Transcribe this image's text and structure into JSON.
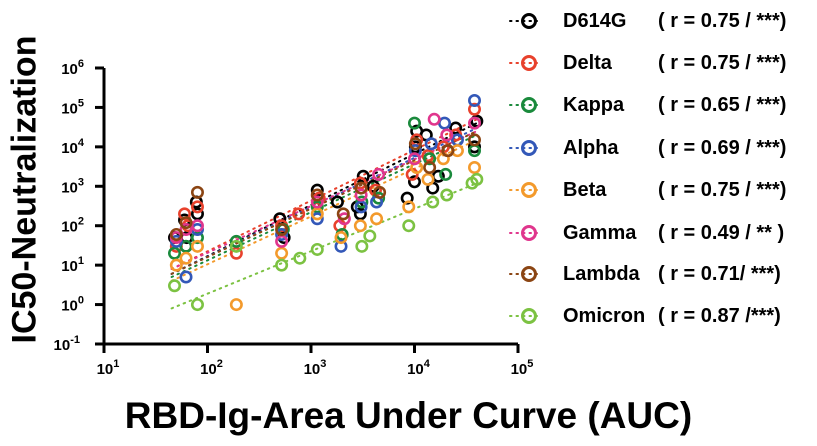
{
  "chart_data": {
    "type": "scatter",
    "title": "",
    "xlabel": "RBD-Ig-Area Under Curve (AUC)",
    "ylabel": "IC50-Neutralization",
    "x_scale": "log",
    "y_scale": "log",
    "xlim": [
      10,
      100000
    ],
    "ylim": [
      0.1,
      1000000
    ],
    "x_ticks": [
      {
        "base": "10",
        "exp": "1"
      },
      {
        "base": "10",
        "exp": "2"
      },
      {
        "base": "10",
        "exp": "3"
      },
      {
        "base": "10",
        "exp": "4"
      },
      {
        "base": "10",
        "exp": "5"
      }
    ],
    "y_ticks": [
      {
        "base": "10",
        "exp": "-1"
      },
      {
        "base": "10",
        "exp": "0"
      },
      {
        "base": "10",
        "exp": "1"
      },
      {
        "base": "10",
        "exp": "2"
      },
      {
        "base": "10",
        "exp": "3"
      },
      {
        "base": "10",
        "exp": "4"
      },
      {
        "base": "10",
        "exp": "5"
      },
      {
        "base": "10",
        "exp": "6"
      }
    ],
    "grid": false,
    "legend_position": "right",
    "series": [
      {
        "name": "D614G",
        "stat": "( r = 0.75 / ***)",
        "color": "#000000",
        "fit": [
          [
            45,
            6
          ],
          [
            40000,
            40000
          ]
        ],
        "points": [
          [
            48,
            50
          ],
          [
            60,
            140
          ],
          [
            62,
            30
          ],
          [
            63,
            50
          ],
          [
            78,
            400
          ],
          [
            80,
            200
          ],
          [
            500,
            150
          ],
          [
            550,
            50
          ],
          [
            1150,
            800
          ],
          [
            1800,
            400
          ],
          [
            2800,
            300
          ],
          [
            3000,
            200
          ],
          [
            3200,
            1800
          ],
          [
            4000,
            1000
          ],
          [
            8500,
            500
          ],
          [
            10000,
            1300
          ],
          [
            10200,
            10000
          ],
          [
            10500,
            25000
          ],
          [
            13000,
            20000
          ],
          [
            15000,
            900
          ],
          [
            17000,
            1800
          ],
          [
            21000,
            8000
          ],
          [
            25000,
            30000
          ],
          [
            38000,
            10000
          ],
          [
            40000,
            45000
          ]
        ]
      },
      {
        "name": "Delta",
        "stat": "( r = 0.75 / ***)",
        "color": "#e8412c",
        "fit": [
          [
            45,
            8
          ],
          [
            40000,
            50000
          ]
        ],
        "points": [
          [
            50,
            30
          ],
          [
            60,
            200
          ],
          [
            65,
            100
          ],
          [
            80,
            300
          ],
          [
            190,
            20
          ],
          [
            520,
            100
          ],
          [
            760,
            200
          ],
          [
            1200,
            500
          ],
          [
            1900,
            100
          ],
          [
            3000,
            1200
          ],
          [
            4200,
            800
          ],
          [
            9500,
            2000
          ],
          [
            10500,
            15000
          ],
          [
            13500,
            6000
          ],
          [
            19000,
            10000
          ],
          [
            25000,
            20000
          ],
          [
            38000,
            90000
          ]
        ]
      },
      {
        "name": "Kappa",
        "stat": "( r = 0.65 / ***)",
        "color": "#1a8a3c",
        "fit": [
          [
            45,
            5
          ],
          [
            40000,
            20000
          ]
        ],
        "points": [
          [
            48,
            20
          ],
          [
            62,
            30
          ],
          [
            80,
            50
          ],
          [
            190,
            40
          ],
          [
            540,
            80
          ],
          [
            1150,
            300
          ],
          [
            2000,
            60
          ],
          [
            3100,
            400
          ],
          [
            4500,
            500
          ],
          [
            10000,
            40000
          ],
          [
            14000,
            5000
          ],
          [
            20000,
            2000
          ],
          [
            38000,
            8000
          ]
        ]
      },
      {
        "name": "Alpha",
        "stat": "( r = 0.69 / ***)",
        "color": "#3358b8",
        "fit": [
          [
            45,
            6
          ],
          [
            40000,
            30000
          ]
        ],
        "points": [
          [
            50,
            40
          ],
          [
            62,
            5
          ],
          [
            80,
            80
          ],
          [
            520,
            60
          ],
          [
            1150,
            150
          ],
          [
            1950,
            30
          ],
          [
            3050,
            300
          ],
          [
            4300,
            400
          ],
          [
            10200,
            8000
          ],
          [
            14500,
            12000
          ],
          [
            19500,
            40000
          ],
          [
            26000,
            15000
          ],
          [
            38000,
            150000
          ]
        ]
      },
      {
        "name": "Beta",
        "stat": "( r = 0.75 / ***)",
        "color": "#f39a2c",
        "fit": [
          [
            45,
            4
          ],
          [
            40000,
            15000
          ]
        ],
        "points": [
          [
            50,
            10
          ],
          [
            62,
            15
          ],
          [
            80,
            30
          ],
          [
            190,
            1
          ],
          [
            520,
            20
          ],
          [
            1150,
            200
          ],
          [
            1950,
            50
          ],
          [
            3000,
            100
          ],
          [
            4300,
            150
          ],
          [
            8800,
            300
          ],
          [
            10500,
            3000
          ],
          [
            13500,
            1500
          ],
          [
            19000,
            5000
          ],
          [
            26000,
            8000
          ],
          [
            38000,
            3000
          ]
        ]
      },
      {
        "name": "Gamma",
        "stat": "( r = 0.49 / ** )",
        "color": "#e0368d",
        "fit": [
          [
            45,
            8
          ],
          [
            40000,
            25000
          ]
        ],
        "points": [
          [
            50,
            50
          ],
          [
            62,
            80
          ],
          [
            80,
            100
          ],
          [
            520,
            40
          ],
          [
            1150,
            400
          ],
          [
            2100,
            150
          ],
          [
            3050,
            600
          ],
          [
            4500,
            2000
          ],
          [
            10000,
            5000
          ],
          [
            15500,
            50000
          ],
          [
            20500,
            20000
          ],
          [
            38000,
            40000
          ]
        ]
      },
      {
        "name": "Lambda",
        "stat": "( r = 0.71/ ***)",
        "color": "#8b4513",
        "fit": [
          [
            45,
            6
          ],
          [
            40000,
            25000
          ]
        ],
        "points": [
          [
            50,
            60
          ],
          [
            62,
            120
          ],
          [
            80,
            700
          ],
          [
            520,
            80
          ],
          [
            1150,
            600
          ],
          [
            2050,
            200
          ],
          [
            3050,
            900
          ],
          [
            4600,
            700
          ],
          [
            10200,
            12000
          ],
          [
            14000,
            3000
          ],
          [
            21000,
            8000
          ],
          [
            38000,
            15000
          ]
        ]
      },
      {
        "name": "Omicron",
        "stat": "( r = 0.87 /***)",
        "color": "#7cc242",
        "fit": [
          [
            45,
            0.8
          ],
          [
            40000,
            1200
          ]
        ],
        "points": [
          [
            48,
            3
          ],
          [
            80,
            1
          ],
          [
            190,
            30
          ],
          [
            520,
            10
          ],
          [
            780,
            15
          ],
          [
            1150,
            25
          ],
          [
            3100,
            30
          ],
          [
            3700,
            55
          ],
          [
            8800,
            100
          ],
          [
            15000,
            400
          ],
          [
            20500,
            600
          ],
          [
            36000,
            1200
          ],
          [
            40000,
            1500
          ]
        ]
      }
    ]
  }
}
